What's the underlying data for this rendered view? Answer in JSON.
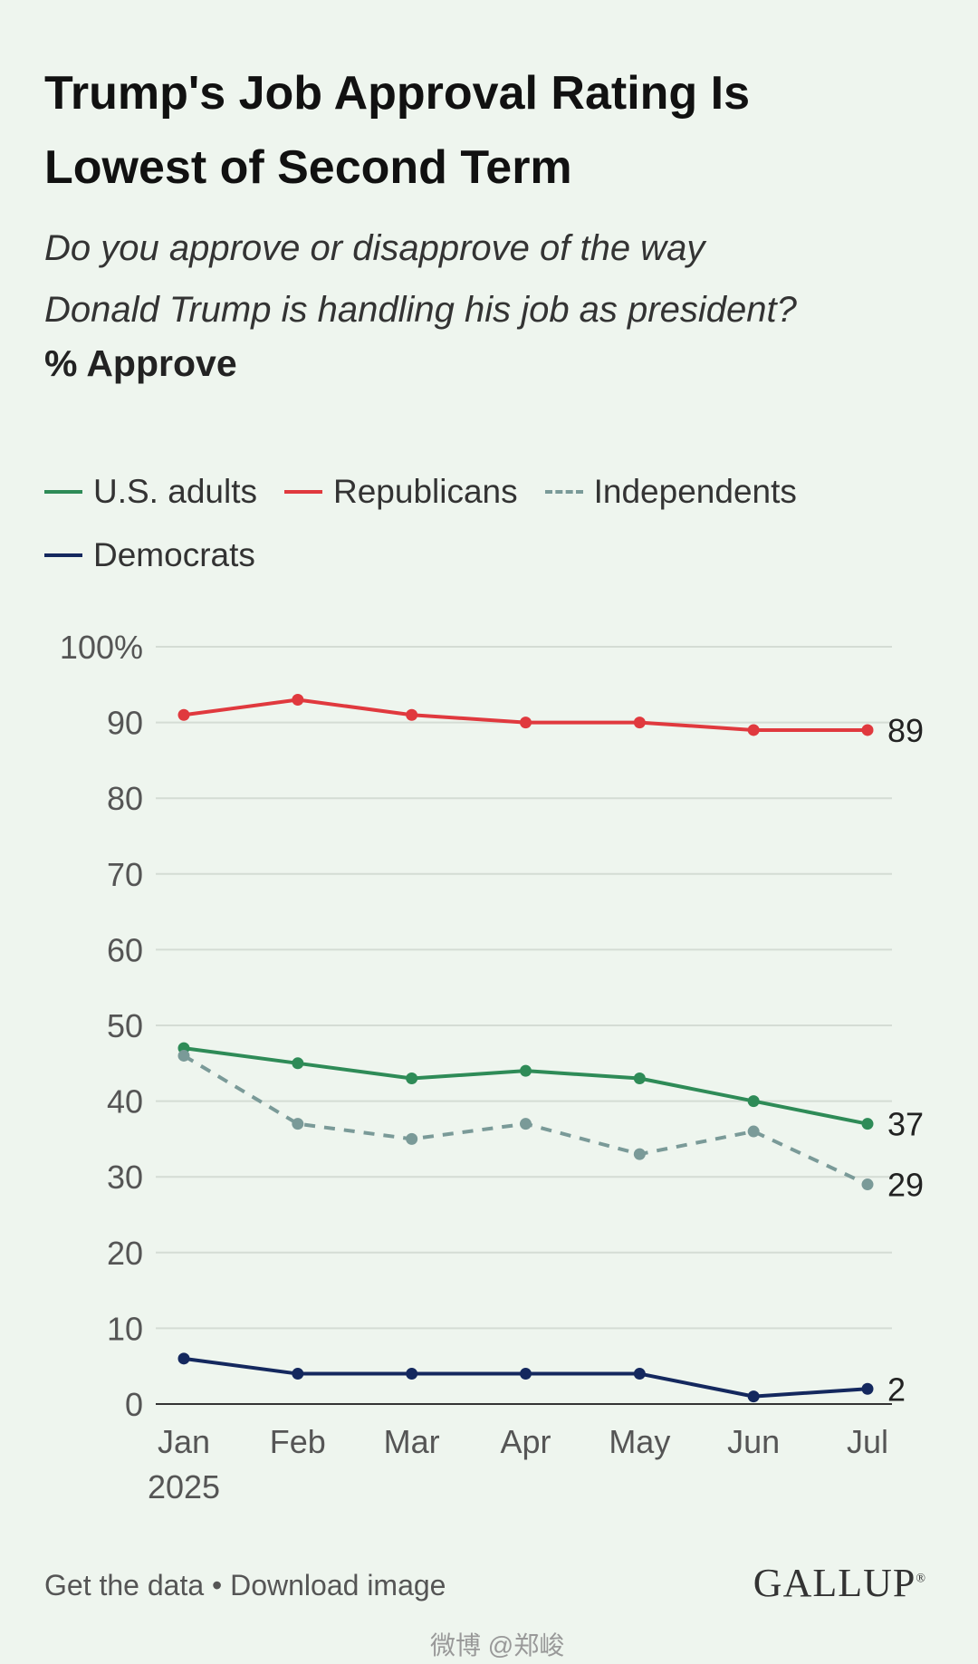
{
  "header": {
    "title_line1": "Trump's Job Approval Rating Is",
    "title_line2": "Lowest of Second Term",
    "question_line1": "Do you approve or disapprove of the way",
    "question_line2": "Donald Trump is handling his job as president?",
    "measure": "% Approve"
  },
  "legend": {
    "items": [
      {
        "label": "U.S. adults",
        "color": "#2e8b57",
        "style": "solid"
      },
      {
        "label": "Republicans",
        "color": "#e0393e",
        "style": "solid"
      },
      {
        "label": "Independents",
        "color": "#7a9a98",
        "style": "dashed"
      },
      {
        "label": "Democrats",
        "color": "#14285e",
        "style": "solid"
      }
    ]
  },
  "chart_data": {
    "type": "line",
    "x": [
      "Jan",
      "Feb",
      "Mar",
      "Apr",
      "May",
      "Jun",
      "Jul"
    ],
    "x_sublabel_first": "2025",
    "ylim": [
      0,
      100
    ],
    "yticks": [
      0,
      10,
      20,
      30,
      40,
      50,
      60,
      70,
      80,
      90,
      100
    ],
    "ytick_labels": [
      "0",
      "10",
      "20",
      "30",
      "40",
      "50",
      "60",
      "70",
      "80",
      "90",
      "100%"
    ],
    "grid": true,
    "series": [
      {
        "name": "Republicans",
        "color": "#e0393e",
        "dashed": false,
        "values": [
          91,
          93,
          91,
          90,
          90,
          89,
          89
        ],
        "end_label": "89"
      },
      {
        "name": "U.S. adults",
        "color": "#2e8b57",
        "dashed": false,
        "values": [
          47,
          45,
          43,
          44,
          43,
          40,
          37
        ],
        "end_label": "37"
      },
      {
        "name": "Independents",
        "color": "#7a9a98",
        "dashed": true,
        "values": [
          46,
          37,
          35,
          37,
          33,
          36,
          29
        ],
        "end_label": "29"
      },
      {
        "name": "Democrats",
        "color": "#14285e",
        "dashed": false,
        "values": [
          6,
          4,
          4,
          4,
          4,
          1,
          2
        ],
        "end_label": "2"
      }
    ]
  },
  "footer": {
    "get_data": "Get the data",
    "separator": "•",
    "download": "Download image",
    "brand": "GALLUP",
    "brand_mark": "®",
    "watermark": "微博 @郑峻"
  }
}
